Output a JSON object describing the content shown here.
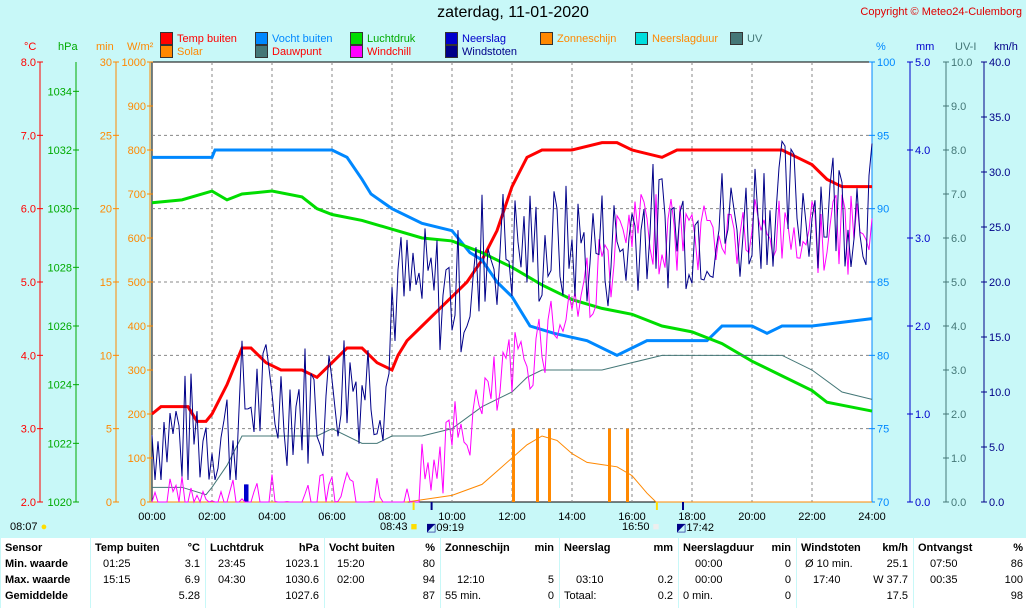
{
  "header": {
    "title": "zaterdag, 11-01-2020",
    "copyright": "Copyright © Meteo24-Culemborg"
  },
  "legend": [
    {
      "label": "Temp buiten",
      "color": "#ff0000"
    },
    {
      "label": "Vocht buiten",
      "color": "#0088ff"
    },
    {
      "label": "Luchtdruk",
      "color": "#00dd00"
    },
    {
      "label": "Neerslag",
      "color": "#0000cc"
    },
    {
      "label": "Zonneschijn",
      "color": "#ff8800"
    },
    {
      "label": "Neerslagduur",
      "color": "#00dddd"
    },
    {
      "label": "UV",
      "color": "#447777"
    },
    {
      "label": "Solar",
      "color": "#ff8800"
    },
    {
      "label": "Dauwpunt",
      "color": "#447777"
    },
    {
      "label": "Windchill",
      "color": "#ff00ff"
    },
    {
      "label": "Windstoten",
      "color": "#000088"
    }
  ],
  "axis_units": {
    "temp": "°C",
    "pressure": "hPa",
    "min": "min",
    "solar": "W/m²",
    "humidity": "%",
    "rain": "mm",
    "uvi": "UV-I",
    "wind": "km/h"
  },
  "axis_ticks": {
    "temp": [
      "8.0",
      "7.0",
      "6.0",
      "5.0",
      "4.0",
      "3.0",
      "2.0"
    ],
    "pressure": [
      "1034",
      "1032",
      "1030",
      "1028",
      "1026",
      "1024",
      "1022",
      "1020"
    ],
    "min": [
      "30",
      "25",
      "20",
      "15",
      "10",
      "5",
      "0"
    ],
    "solar": [
      "1000",
      "900",
      "800",
      "700",
      "600",
      "500",
      "400",
      "300",
      "200",
      "100",
      "0"
    ],
    "humidity": [
      "100",
      "95",
      "90",
      "85",
      "80",
      "75",
      "70"
    ],
    "rain": [
      "5.0",
      "4.0",
      "3.0",
      "2.0",
      "1.0",
      "0.0"
    ],
    "uvi": [
      "10.0",
      "9.0",
      "8.0",
      "7.0",
      "6.0",
      "5.0",
      "4.0",
      "3.0",
      "2.0",
      "1.0",
      "0.0"
    ],
    "wind": [
      "40.0",
      "35.0",
      "30.0",
      "25.0",
      "20.0",
      "15.0",
      "10.0",
      "5.0",
      "0.0"
    ]
  },
  "x_ticks": [
    "00:00",
    "02:00",
    "04:00",
    "06:00",
    "08:00",
    "10:00",
    "12:00",
    "14:00",
    "16:00",
    "18:00",
    "20:00",
    "22:00",
    "24:00"
  ],
  "sun_times": {
    "moonrise": "08:07",
    "sunrise": "08:43",
    "civil1": "09:19",
    "sunset": "16:50",
    "civil2": "17:42"
  },
  "chart_data": {
    "type": "line",
    "title": "zaterdag, 11-01-2020",
    "x_unit": "hour",
    "xlim": [
      0,
      24
    ],
    "series": [
      {
        "name": "Temp buiten",
        "unit": "°C",
        "ylim": [
          2,
          8
        ],
        "x": [
          0,
          0.3,
          1.2,
          1.5,
          1.8,
          2,
          2.5,
          3,
          3.3,
          3.8,
          4.3,
          5,
          5.5,
          6.5,
          7,
          7.5,
          8,
          8.2,
          8.5,
          9,
          9.5,
          10,
          10.5,
          11,
          11.5,
          12,
          12.5,
          13,
          14,
          15,
          15.5,
          16,
          17,
          17.5,
          18,
          18.5,
          20,
          21,
          21.5,
          22,
          22.5,
          23,
          24
        ],
        "y": [
          3.2,
          3.3,
          3.3,
          3.1,
          3.1,
          3.2,
          3.6,
          4.1,
          4.1,
          3.9,
          3.8,
          3.8,
          3.7,
          4.1,
          4.1,
          3.9,
          3.8,
          4.0,
          4.2,
          4.4,
          4.6,
          4.8,
          5.0,
          5.3,
          5.7,
          6.3,
          6.7,
          6.8,
          6.8,
          6.9,
          6.9,
          6.8,
          6.7,
          6.8,
          6.8,
          6.8,
          6.8,
          6.8,
          6.7,
          6.6,
          6.4,
          6.3,
          6.3
        ]
      },
      {
        "name": "Vocht buiten",
        "unit": "%",
        "ylim": [
          70,
          100
        ],
        "x": [
          0,
          2,
          2.1,
          6,
          6.5,
          7,
          7.3,
          8,
          9,
          10,
          10.6,
          11,
          11.5,
          12,
          12.6,
          13.4,
          14.5,
          15.5,
          16.5,
          17.5,
          18.5,
          19,
          20,
          20.5,
          21,
          22,
          24
        ],
        "y": [
          93.5,
          93.5,
          94,
          94,
          93.5,
          92,
          91,
          90,
          89,
          88.5,
          87,
          86.5,
          85,
          84,
          82,
          81.5,
          81,
          80,
          81,
          81,
          81,
          82,
          82,
          81.5,
          82,
          82,
          82.5
        ]
      },
      {
        "name": "Luchtdruk",
        "unit": "hPa",
        "ylim": [
          1020,
          1035
        ],
        "x": [
          0,
          1,
          2,
          2.5,
          3,
          4,
          5,
          5.5,
          6,
          7,
          8,
          9,
          10,
          11,
          12,
          13,
          14,
          15,
          16,
          17,
          18,
          19,
          20,
          21,
          22,
          22.5,
          23,
          24
        ],
        "y": [
          1030.2,
          1030.3,
          1030.6,
          1030.3,
          1030.5,
          1030.6,
          1030.4,
          1030.0,
          1029.8,
          1029.6,
          1029.3,
          1029.0,
          1028.9,
          1028.5,
          1028.0,
          1027.4,
          1026.9,
          1026.6,
          1026.4,
          1026.0,
          1025.8,
          1025.4,
          1024.8,
          1024.3,
          1023.8,
          1023.4,
          1023.3,
          1023.1
        ]
      },
      {
        "name": "Solar",
        "unit": "W/m²",
        "ylim": [
          0,
          1000
        ],
        "x": [
          0,
          8.5,
          9,
          10,
          11,
          11.5,
          12,
          12.5,
          13,
          13.5,
          14,
          14.5,
          15,
          15.5,
          16,
          16.5,
          16.8,
          24
        ],
        "y": [
          0,
          0,
          5,
          15,
          40,
          70,
          100,
          130,
          150,
          140,
          110,
          90,
          85,
          80,
          60,
          20,
          0,
          0
        ]
      },
      {
        "name": "Dauwpunt",
        "unit": "°C",
        "ylim": [
          2,
          8
        ],
        "x": [
          0,
          1,
          1.8,
          2,
          2.5,
          3,
          4,
          5,
          5.5,
          6,
          7,
          7.5,
          8,
          8.5,
          9,
          10,
          11,
          12,
          12.5,
          13,
          13.5,
          14,
          15,
          16,
          17,
          18,
          19,
          20,
          21,
          22,
          23,
          24
        ],
        "y": [
          2.2,
          2.2,
          2.1,
          2.2,
          2.5,
          2.9,
          2.9,
          2.9,
          2.9,
          3.0,
          2.8,
          2.8,
          2.9,
          2.9,
          2.9,
          3.0,
          3.3,
          3.5,
          3.7,
          3.8,
          3.8,
          3.8,
          3.8,
          3.9,
          4.0,
          4.0,
          4.0,
          4.0,
          4.0,
          3.8,
          3.5,
          3.4
        ]
      },
      {
        "name": "Neerslag",
        "unit": "mm",
        "ylim": [
          0,
          5
        ],
        "x": [
          3.1,
          3.15
        ],
        "y": [
          0.2,
          0.2
        ]
      },
      {
        "name": "Zonneschijn",
        "unit": "min",
        "ylim": [
          0,
          30
        ],
        "x": [
          12,
          12.1,
          12.8,
          12.9,
          13.2,
          13.3,
          15.2,
          15.3,
          15.8,
          15.9
        ],
        "y": [
          5,
          5,
          5,
          5,
          5,
          5,
          5,
          5,
          5,
          5
        ]
      }
    ],
    "gust_range_kmh": [
      5,
      37.7
    ]
  },
  "summary": {
    "columns": [
      {
        "header": "Sensor",
        "rows": [
          "Min. waarde",
          "Max. waarde",
          "Gemiddelde"
        ]
      },
      {
        "header": "Temp buiten",
        "unit": "°C",
        "rows": [
          [
            "01:25",
            "3.1"
          ],
          [
            "15:15",
            "6.9"
          ],
          [
            "",
            "5.28"
          ]
        ]
      },
      {
        "header": "Luchtdruk",
        "unit": "hPa",
        "rows": [
          [
            "23:45",
            "1023.1"
          ],
          [
            "04:30",
            "1030.6"
          ],
          [
            "",
            "1027.6"
          ]
        ]
      },
      {
        "header": "Vocht buiten",
        "unit": "%",
        "rows": [
          [
            "15:20",
            "80"
          ],
          [
            "02:00",
            "94"
          ],
          [
            "",
            "87"
          ]
        ]
      },
      {
        "header": "Zonneschijn",
        "unit": "min",
        "rows": [
          [
            "",
            ""
          ],
          [
            "12:10",
            "5"
          ],
          [
            "55 min.",
            "0"
          ]
        ]
      },
      {
        "header": "Neerslag",
        "unit": "mm",
        "rows": [
          [
            "",
            ""
          ],
          [
            "03:10",
            "0.2"
          ],
          [
            "Totaal:",
            "0.2"
          ]
        ]
      },
      {
        "header": "Neerslagduur",
        "unit": "min",
        "rows": [
          [
            "00:00",
            "0"
          ],
          [
            "00:00",
            "0"
          ],
          [
            "0 min.",
            "0"
          ]
        ]
      },
      {
        "header": "Windstoten",
        "unit": "km/h",
        "rows": [
          [
            "Ø 10 min.",
            "25.1"
          ],
          [
            "17:40",
            "W 37.7"
          ],
          [
            "",
            "17.5"
          ]
        ]
      },
      {
        "header": "Ontvangst",
        "unit": "%",
        "rows": [
          [
            "07:50",
            "86"
          ],
          [
            "00:35",
            "100"
          ],
          [
            "",
            "98"
          ]
        ]
      }
    ]
  }
}
